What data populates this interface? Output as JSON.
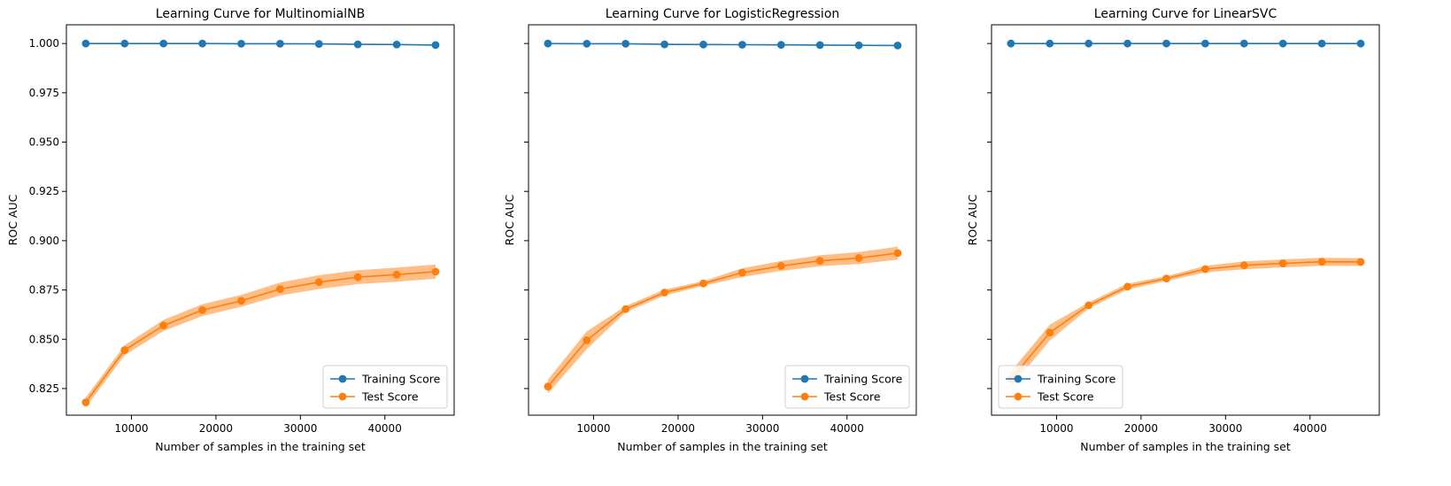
{
  "colors": {
    "train": "#1f77b4",
    "test": "#ff7f0e",
    "test_band": "#ffbb80"
  },
  "chart_data": [
    {
      "type": "line",
      "title": "Learning Curve for MultinomialNB",
      "xlabel": "Number of samples in the training set",
      "ylabel": "ROC AUC",
      "xlim": [
        2300,
        48200
      ],
      "ylim": [
        0.8115,
        1.0095
      ],
      "xticks": [
        10000,
        20000,
        30000,
        40000
      ],
      "xtick_labels": [
        "10000",
        "20000",
        "30000",
        "40000"
      ],
      "yticks": [
        0.825,
        0.85,
        0.875,
        0.9,
        0.925,
        0.95,
        0.975,
        1.0
      ],
      "ytick_labels": [
        "0.825",
        "0.850",
        "0.875",
        "0.900",
        "0.925",
        "0.950",
        "0.975",
        "1.000"
      ],
      "show_yticklabels": true,
      "legend": "lower-right",
      "x": [
        4600,
        9200,
        13800,
        18400,
        23000,
        27600,
        32200,
        36800,
        41400,
        46000
      ],
      "series": [
        {
          "name": "Training Score",
          "values": [
            1.0,
            1.0,
            1.0,
            1.0,
            0.9999,
            0.9999,
            0.9998,
            0.9996,
            0.9995,
            0.9992
          ],
          "band": [
            0.0002,
            0.0002,
            0.0002,
            0.0002,
            0.0002,
            0.0002,
            0.0002,
            0.0002,
            0.0002,
            0.0002
          ]
        },
        {
          "name": "Test Score",
          "values": [
            0.818,
            0.8445,
            0.857,
            0.8648,
            0.8695,
            0.8755,
            0.879,
            0.8815,
            0.8828,
            0.8843
          ],
          "band": [
            0.0025,
            0.0025,
            0.0028,
            0.003,
            0.003,
            0.0033,
            0.0035,
            0.0035,
            0.0036,
            0.0036
          ]
        }
      ]
    },
    {
      "type": "line",
      "title": "Learning Curve for LogisticRegression",
      "xlabel": "Number of samples in the training set",
      "ylabel": "ROC AUC",
      "xlim": [
        2300,
        48200
      ],
      "ylim": [
        0.8115,
        1.0095
      ],
      "xticks": [
        10000,
        20000,
        30000,
        40000
      ],
      "xtick_labels": [
        "10000",
        "20000",
        "30000",
        "40000"
      ],
      "yticks": [
        0.825,
        0.85,
        0.875,
        0.9,
        0.925,
        0.95,
        0.975,
        1.0
      ],
      "ytick_labels": [
        "0.825",
        "0.850",
        "0.875",
        "0.900",
        "0.925",
        "0.950",
        "0.975",
        "1.000"
      ],
      "show_yticklabels": false,
      "legend": "lower-right",
      "x": [
        4600,
        9200,
        13800,
        18400,
        23000,
        27600,
        32200,
        36800,
        41400,
        46000
      ],
      "series": [
        {
          "name": "Training Score",
          "values": [
            1.0,
            0.9999,
            0.9999,
            0.9996,
            0.9995,
            0.9994,
            0.9993,
            0.9992,
            0.9991,
            0.999
          ],
          "band": [
            0.0002,
            0.0002,
            0.0002,
            0.0002,
            0.0002,
            0.0002,
            0.0002,
            0.0002,
            0.0002,
            0.0002
          ]
        },
        {
          "name": "Test Score",
          "values": [
            0.826,
            0.8495,
            0.8653,
            0.8737,
            0.8783,
            0.8838,
            0.8872,
            0.8898,
            0.8912,
            0.8937
          ],
          "band": [
            0.0035,
            0.0045,
            0.0015,
            0.0015,
            0.0012,
            0.0022,
            0.0025,
            0.0028,
            0.003,
            0.0033
          ]
        }
      ]
    },
    {
      "type": "line",
      "title": "Learning Curve for LinearSVC",
      "xlabel": "Number of samples in the training set",
      "ylabel": "ROC AUC",
      "xlim": [
        2300,
        48200
      ],
      "ylim": [
        0.8115,
        1.0095
      ],
      "xticks": [
        10000,
        20000,
        30000,
        40000
      ],
      "xtick_labels": [
        "10000",
        "20000",
        "30000",
        "40000"
      ],
      "yticks": [
        0.825,
        0.85,
        0.875,
        0.9,
        0.925,
        0.95,
        0.975,
        1.0
      ],
      "ytick_labels": [
        "0.825",
        "0.850",
        "0.875",
        "0.900",
        "0.925",
        "0.950",
        "0.975",
        "1.000"
      ],
      "show_yticklabels": false,
      "legend": "lower-left",
      "x": [
        4600,
        9200,
        13800,
        18400,
        23000,
        27600,
        32200,
        36800,
        41400,
        46000
      ],
      "series": [
        {
          "name": "Training Score",
          "values": [
            1.0,
            1.0,
            1.0,
            1.0,
            1.0,
            1.0,
            1.0,
            1.0,
            1.0,
            1.0
          ],
          "band": [
            0.0001,
            0.0001,
            0.0001,
            0.0001,
            0.0001,
            0.0001,
            0.0001,
            0.0001,
            0.0001,
            0.0001
          ]
        },
        {
          "name": "Test Score",
          "values": [
            0.8297,
            0.8534,
            0.8672,
            0.8767,
            0.8808,
            0.8856,
            0.8875,
            0.8885,
            0.8893,
            0.8892
          ],
          "band": [
            0.004,
            0.004,
            0.0015,
            0.0015,
            0.0012,
            0.0017,
            0.002,
            0.002,
            0.002,
            0.002
          ]
        }
      ]
    }
  ]
}
